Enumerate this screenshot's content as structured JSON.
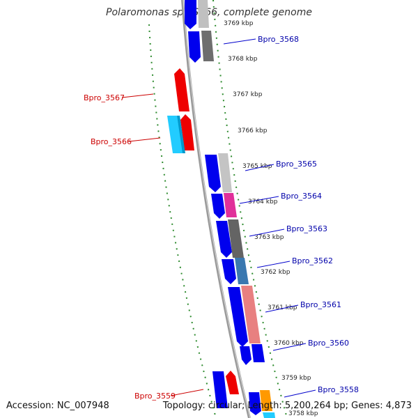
{
  "title": "Polaromonas sp. JS666, complete genome",
  "accession_label": "Accession: NC_007948",
  "summary_label": "Topology: circular; Length: 5,200,264 bp; Genes: 4,873",
  "colors": {
    "backbone": "#888888",
    "dotted_track": "#2e8b2e",
    "forward_label": "#0000aa",
    "reverse_label": "#cc0000",
    "forward_gene": "#0000ee",
    "reverse_gene": "#ee0000"
  },
  "ticks": [
    "3769 kbp",
    "3768 kbp",
    "3767 kbp",
    "3766 kbp",
    "3765 kbp",
    "3764 kbp",
    "3763 kbp",
    "3762 kbp",
    "3761 kbp",
    "3760 kbp",
    "3759 kbp",
    "3758 kbp"
  ],
  "gene_labels": [
    {
      "name": "Bpro_3568",
      "strand": "forward"
    },
    {
      "name": "Bpro_3567",
      "strand": "reverse"
    },
    {
      "name": "Bpro_3566",
      "strand": "reverse"
    },
    {
      "name": "Bpro_3565",
      "strand": "forward"
    },
    {
      "name": "Bpro_3564",
      "strand": "forward"
    },
    {
      "name": "Bpro_3563",
      "strand": "forward"
    },
    {
      "name": "Bpro_3562",
      "strand": "forward"
    },
    {
      "name": "Bpro_3561",
      "strand": "forward"
    },
    {
      "name": "Bpro_3560",
      "strand": "forward"
    },
    {
      "name": "Bpro_3559",
      "strand": "reverse"
    },
    {
      "name": "Bpro_3558",
      "strand": "forward"
    }
  ]
}
